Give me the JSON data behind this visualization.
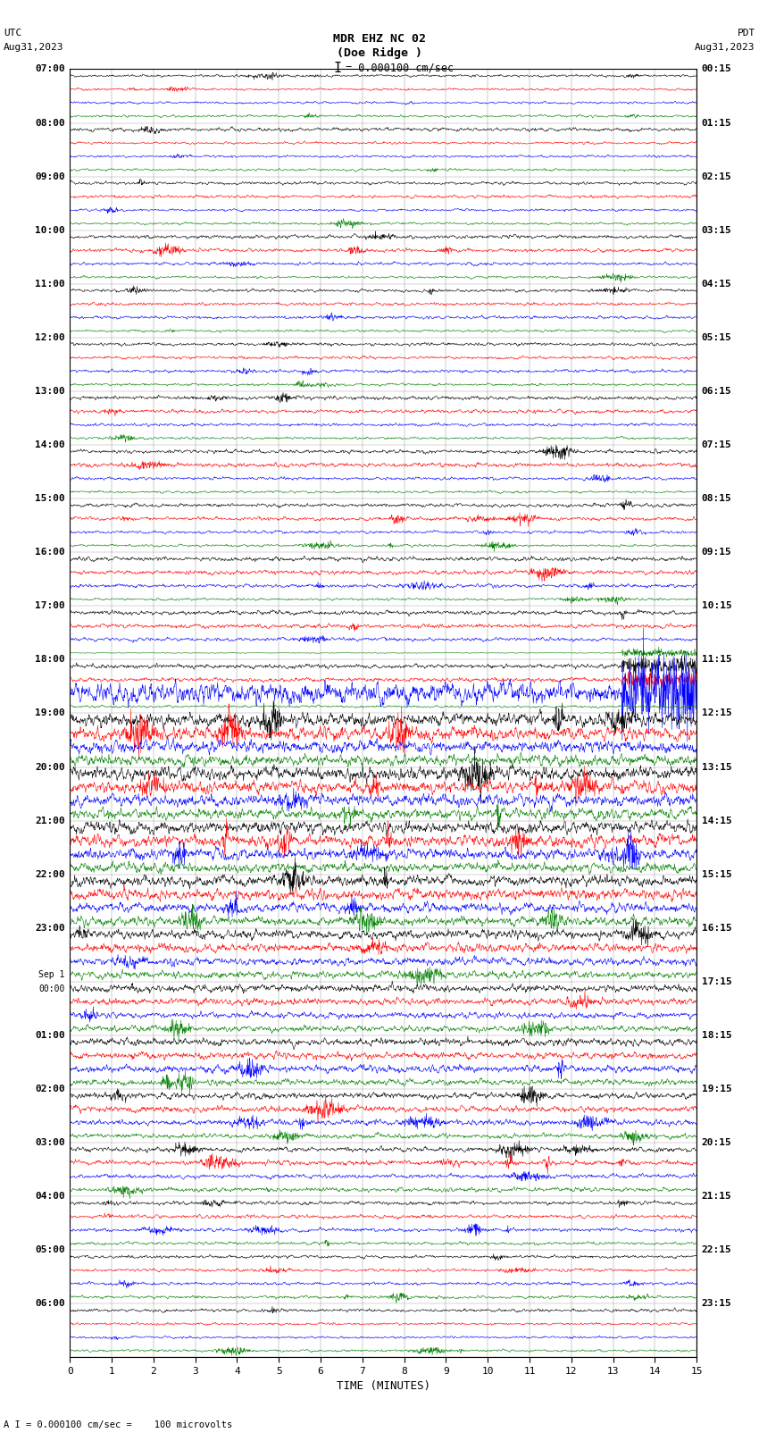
{
  "title_line1": "MDR EHZ NC 02",
  "title_line2": "(Doe Ridge )",
  "scale_text": "I = 0.000100 cm/sec",
  "label_left_top1": "UTC",
  "label_left_top2": "Aug31,2023",
  "label_right_top1": "PDT",
  "label_right_top2": "Aug31,2023",
  "xlabel": "TIME (MINUTES)",
  "footer": "A I = 0.000100 cm/sec =    100 microvolts",
  "utc_labels": [
    "07:00",
    "08:00",
    "09:00",
    "10:00",
    "11:00",
    "12:00",
    "13:00",
    "14:00",
    "15:00",
    "16:00",
    "17:00",
    "18:00",
    "19:00",
    "20:00",
    "21:00",
    "22:00",
    "23:00",
    "Sep 1\n00:00",
    "01:00",
    "02:00",
    "03:00",
    "04:00",
    "05:00",
    "06:00"
  ],
  "pdt_labels": [
    "00:15",
    "01:15",
    "02:15",
    "03:15",
    "04:15",
    "05:15",
    "06:15",
    "07:15",
    "08:15",
    "09:15",
    "10:15",
    "11:15",
    "12:15",
    "13:15",
    "14:15",
    "15:15",
    "16:15",
    "17:15",
    "18:15",
    "19:15",
    "20:15",
    "21:15",
    "22:15",
    "23:15"
  ],
  "n_rows": 96,
  "colors": [
    "black",
    "red",
    "blue",
    "green"
  ],
  "bg_color": "white",
  "x_ticks": [
    0,
    1,
    2,
    3,
    4,
    5,
    6,
    7,
    8,
    9,
    10,
    11,
    12,
    13,
    14,
    15
  ],
  "seed": 42,
  "row_amplitudes": [
    0.04,
    0.04,
    0.04,
    0.04,
    0.06,
    0.04,
    0.04,
    0.04,
    0.05,
    0.05,
    0.04,
    0.04,
    0.06,
    0.06,
    0.05,
    0.04,
    0.05,
    0.05,
    0.05,
    0.04,
    0.05,
    0.05,
    0.05,
    0.04,
    0.06,
    0.06,
    0.05,
    0.04,
    0.06,
    0.07,
    0.05,
    0.04,
    0.06,
    0.06,
    0.05,
    0.04,
    0.07,
    0.07,
    0.06,
    0.04,
    0.07,
    0.07,
    0.06,
    0.04,
    0.07,
    0.07,
    0.35,
    0.04,
    0.22,
    0.22,
    0.2,
    0.18,
    0.22,
    0.2,
    0.2,
    0.18,
    0.2,
    0.2,
    0.18,
    0.16,
    0.18,
    0.18,
    0.16,
    0.15,
    0.15,
    0.14,
    0.13,
    0.12,
    0.12,
    0.11,
    0.1,
    0.1,
    0.12,
    0.11,
    0.12,
    0.1,
    0.1,
    0.1,
    0.09,
    0.08,
    0.08,
    0.08,
    0.07,
    0.07,
    0.06,
    0.06,
    0.06,
    0.05,
    0.05,
    0.05,
    0.05,
    0.05,
    0.05,
    0.04,
    0.04,
    0.04
  ]
}
